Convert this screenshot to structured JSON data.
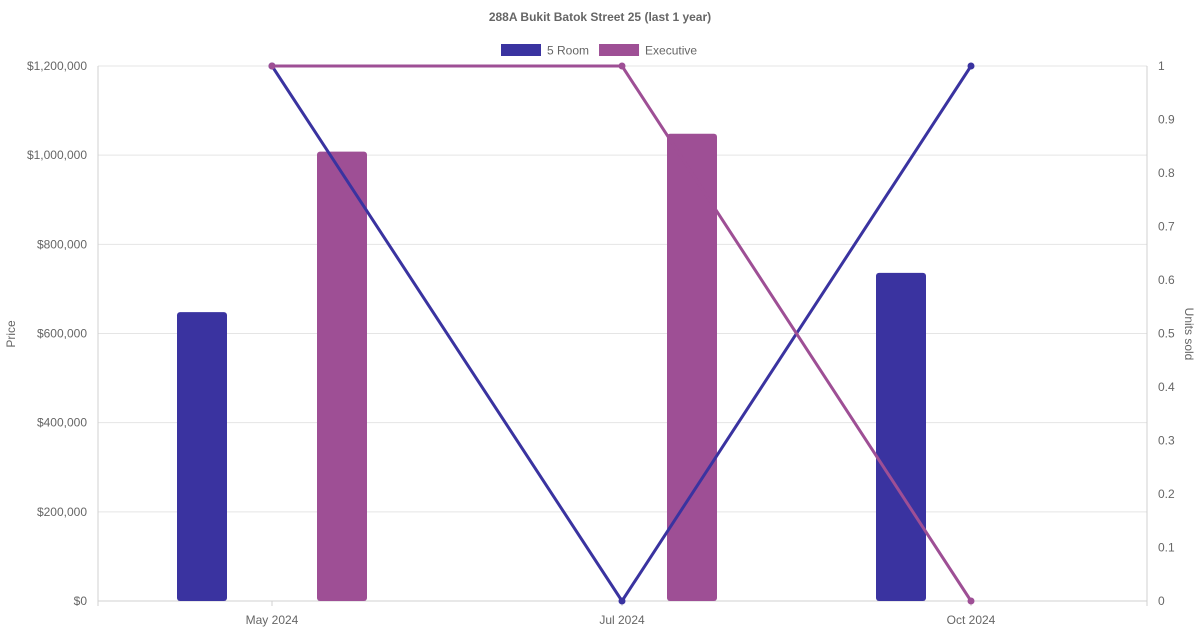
{
  "chart_data": {
    "type": "bar",
    "title": "288A Bukit Batok Street 25 (last 1 year)",
    "categories": [
      "May 2024",
      "Jul 2024",
      "Oct 2024"
    ],
    "legend_position": "top-center",
    "grid": true,
    "y_left": {
      "label": "Price",
      "min": 0,
      "max": 1200000,
      "ticks": [
        0,
        200000,
        400000,
        600000,
        800000,
        1000000,
        1200000
      ],
      "tick_labels": [
        "$0",
        "$200,000",
        "$400,000",
        "$600,000",
        "$800,000",
        "$1,000,000",
        "$1,200,000"
      ]
    },
    "y_right": {
      "label": "Units sold",
      "min": 0,
      "max": 1,
      "ticks": [
        0,
        0.1,
        0.2,
        0.3,
        0.4,
        0.5,
        0.6,
        0.7,
        0.8,
        0.9,
        1
      ],
      "tick_labels": [
        "0",
        "0.1",
        "0.2",
        "0.3",
        "0.4",
        "0.5",
        "0.6",
        "0.7",
        "0.8",
        "0.9",
        "1"
      ]
    },
    "series": [
      {
        "name": "5 Room",
        "color": "#3a33a0",
        "price_values": [
          648000,
          null,
          736000
        ],
        "units_sold": [
          1,
          0,
          1
        ]
      },
      {
        "name": "Executive",
        "color": "#9e4f95",
        "price_values": [
          1008000,
          1048000,
          null
        ],
        "units_sold": [
          1,
          1,
          0
        ]
      }
    ]
  }
}
